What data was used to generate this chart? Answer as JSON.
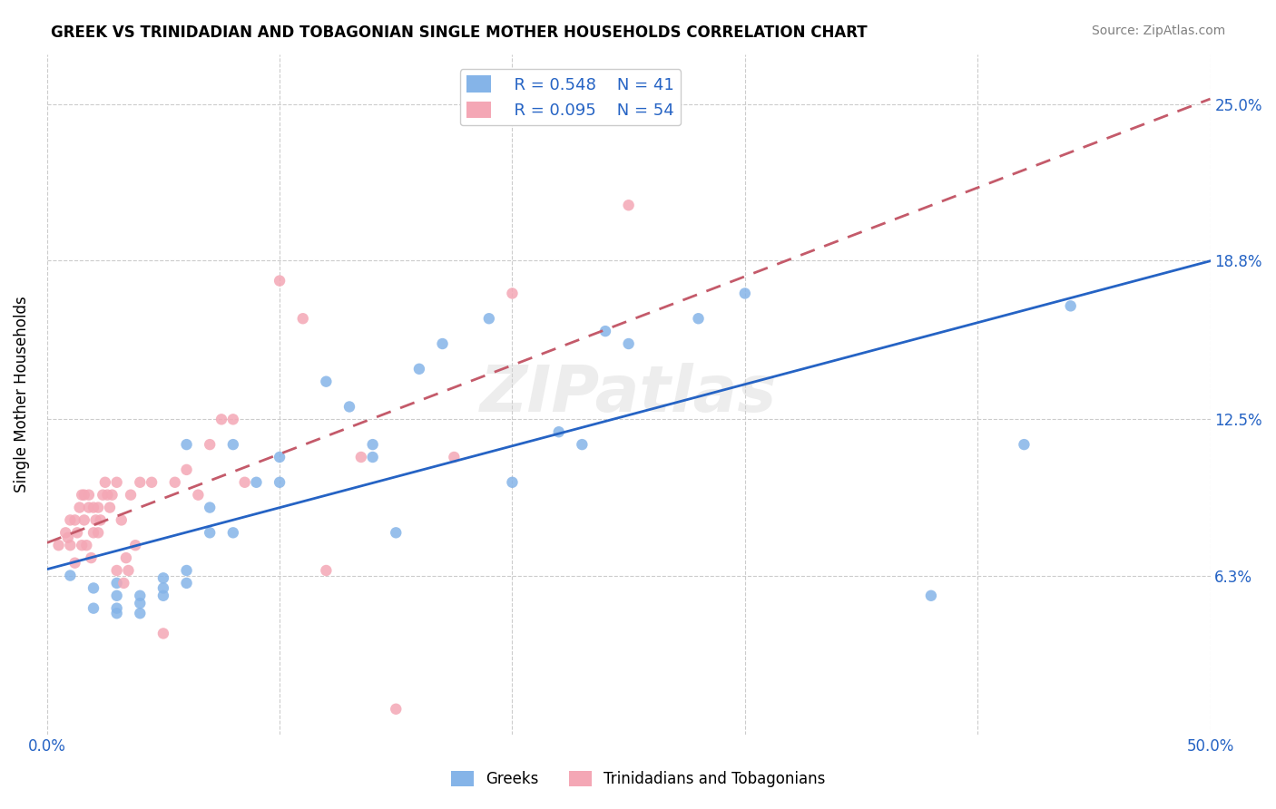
{
  "title": "GREEK VS TRINIDADIAN AND TOBAGONIAN SINGLE MOTHER HOUSEHOLDS CORRELATION CHART",
  "source": "Source: ZipAtlas.com",
  "ylabel": "Single Mother Households",
  "ytick_labels": [
    "6.3%",
    "12.5%",
    "18.8%",
    "25.0%"
  ],
  "ytick_values": [
    0.063,
    0.125,
    0.188,
    0.25
  ],
  "xlim": [
    0.0,
    0.5
  ],
  "ylim": [
    0.0,
    0.27
  ],
  "legend_r_greek": "R = 0.548",
  "legend_n_greek": "N = 41",
  "legend_r_tnt": "R = 0.095",
  "legend_n_tnt": "N = 54",
  "color_greek": "#85b4e8",
  "color_tnt": "#f4a7b5",
  "color_greek_line": "#2563c4",
  "color_tnt_line": "#c45a6a",
  "watermark": "ZIPatlas",
  "greek_scatter_x": [
    0.01,
    0.02,
    0.02,
    0.03,
    0.03,
    0.03,
    0.03,
    0.04,
    0.04,
    0.04,
    0.05,
    0.05,
    0.05,
    0.06,
    0.06,
    0.06,
    0.07,
    0.07,
    0.08,
    0.08,
    0.09,
    0.1,
    0.1,
    0.12,
    0.13,
    0.14,
    0.14,
    0.15,
    0.16,
    0.17,
    0.19,
    0.2,
    0.22,
    0.23,
    0.24,
    0.25,
    0.28,
    0.3,
    0.38,
    0.42,
    0.44
  ],
  "greek_scatter_y": [
    0.063,
    0.05,
    0.058,
    0.048,
    0.05,
    0.055,
    0.06,
    0.048,
    0.052,
    0.055,
    0.055,
    0.058,
    0.062,
    0.06,
    0.065,
    0.115,
    0.08,
    0.09,
    0.08,
    0.115,
    0.1,
    0.1,
    0.11,
    0.14,
    0.13,
    0.11,
    0.115,
    0.08,
    0.145,
    0.155,
    0.165,
    0.1,
    0.12,
    0.115,
    0.16,
    0.155,
    0.165,
    0.175,
    0.055,
    0.115,
    0.17
  ],
  "tnt_scatter_x": [
    0.005,
    0.008,
    0.009,
    0.01,
    0.01,
    0.012,
    0.012,
    0.013,
    0.014,
    0.015,
    0.015,
    0.016,
    0.016,
    0.017,
    0.018,
    0.018,
    0.019,
    0.02,
    0.02,
    0.021,
    0.022,
    0.022,
    0.023,
    0.024,
    0.025,
    0.026,
    0.027,
    0.028,
    0.03,
    0.03,
    0.032,
    0.033,
    0.034,
    0.035,
    0.036,
    0.038,
    0.04,
    0.045,
    0.05,
    0.055,
    0.06,
    0.065,
    0.07,
    0.075,
    0.08,
    0.085,
    0.1,
    0.11,
    0.12,
    0.135,
    0.15,
    0.175,
    0.2,
    0.25
  ],
  "tnt_scatter_y": [
    0.075,
    0.08,
    0.078,
    0.075,
    0.085,
    0.068,
    0.085,
    0.08,
    0.09,
    0.075,
    0.095,
    0.085,
    0.095,
    0.075,
    0.09,
    0.095,
    0.07,
    0.08,
    0.09,
    0.085,
    0.08,
    0.09,
    0.085,
    0.095,
    0.1,
    0.095,
    0.09,
    0.095,
    0.065,
    0.1,
    0.085,
    0.06,
    0.07,
    0.065,
    0.095,
    0.075,
    0.1,
    0.1,
    0.04,
    0.1,
    0.105,
    0.095,
    0.115,
    0.125,
    0.125,
    0.1,
    0.18,
    0.165,
    0.065,
    0.11,
    0.01,
    0.11,
    0.175,
    0.21
  ]
}
